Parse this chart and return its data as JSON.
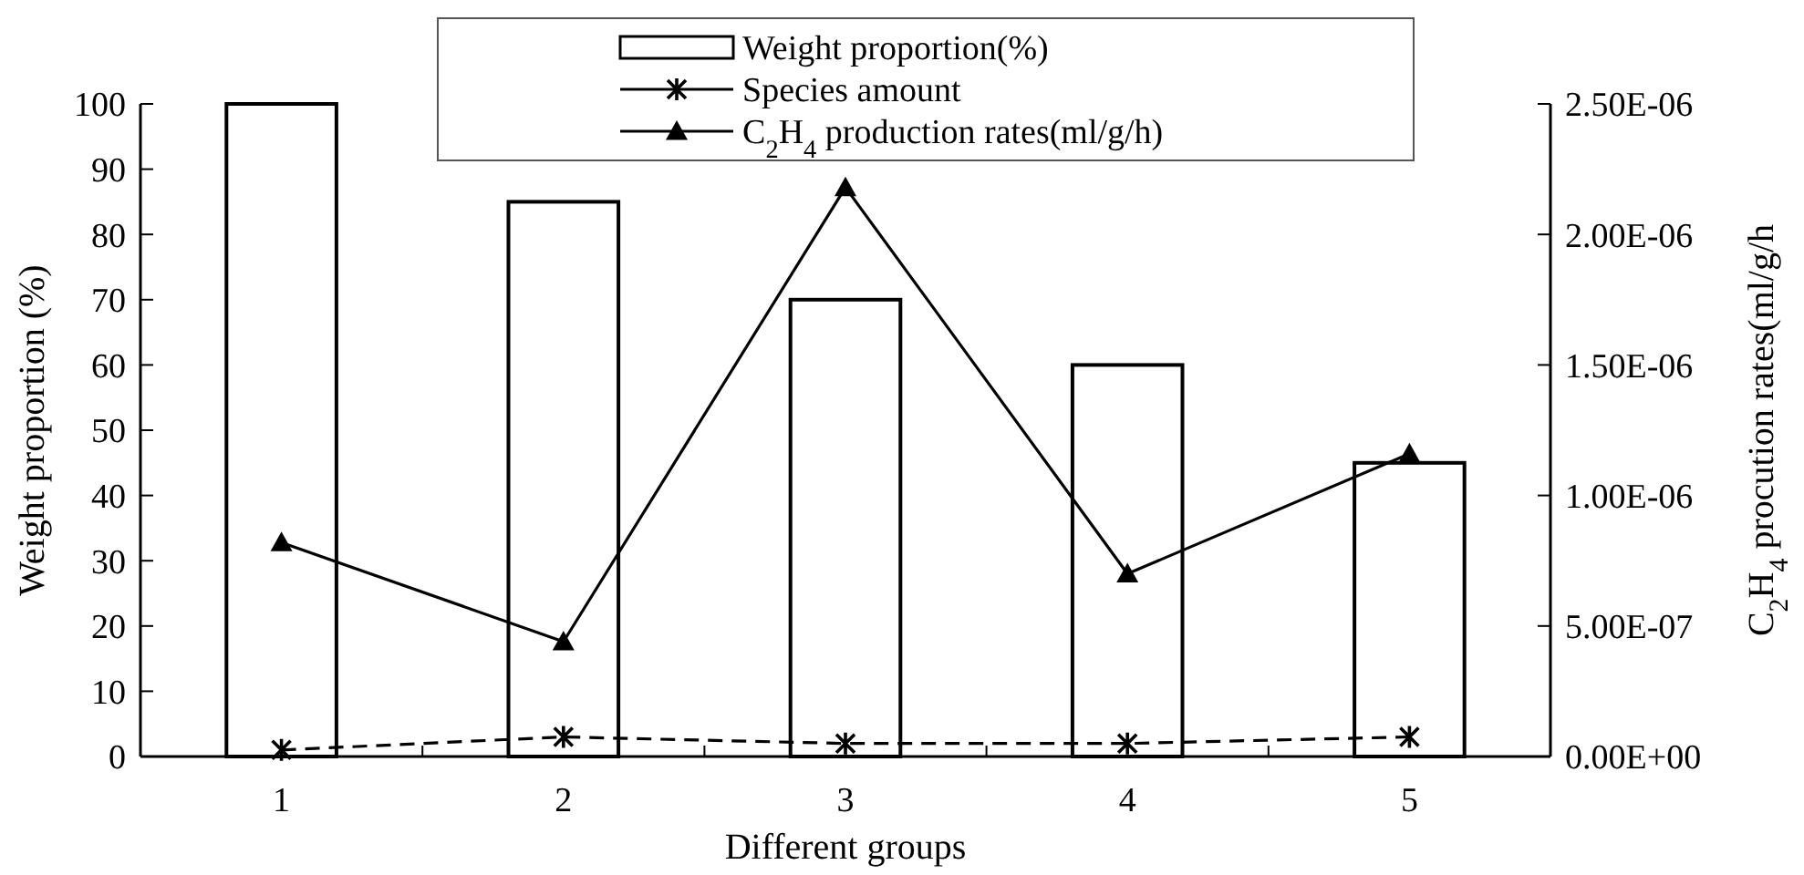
{
  "chart_data": {
    "type": "bar",
    "xlabel": "Different groups",
    "ylabel": "Weight proportion (%)",
    "y2label": "C$_{2}$H$_{4}$ procution rates(ml/g/h",
    "categories": [
      "1",
      "2",
      "3",
      "4",
      "5"
    ],
    "series": [
      {
        "name": "Weight proportion(%)",
        "color": "#ffffff",
        "values": [
          100,
          85,
          70,
          60,
          45
        ]
      },
      {
        "name": "Species amount",
        "type": "line",
        "color": "#000000",
        "marker": "cross",
        "line_style": "dashed",
        "values": [
          1,
          3,
          2,
          2,
          3
        ]
      },
      {
        "name": "C$_{2}$H$_{4}$ production rates(ml/g/h)",
        "type": "line",
        "axis": "y2",
        "color": "#000000",
        "marker": "triangle",
        "line_style": "solid",
        "values": [
          8.2e-07,
          4.4e-07,
          2.18e-06,
          7e-07,
          1.16e-06
        ]
      }
    ],
    "ylim": [
      0,
      100
    ],
    "yticks": [
      0,
      10,
      20,
      30,
      40,
      50,
      60,
      70,
      80,
      90,
      100
    ],
    "y2lim": [
      0,
      2.5e-06
    ],
    "y2ticks": [
      {
        "value": 0,
        "label": "0.00E+00"
      },
      {
        "value": 5e-07,
        "label": "5.00E-07"
      },
      {
        "value": 1e-06,
        "label": "1.00E-06"
      },
      {
        "value": 1.5e-06,
        "label": "1.50E-06"
      },
      {
        "value": 2e-06,
        "label": "2.00E-06"
      },
      {
        "value": 2.5e-06,
        "label": "2.50E-06"
      }
    ],
    "legend": "top",
    "grid": false
  }
}
